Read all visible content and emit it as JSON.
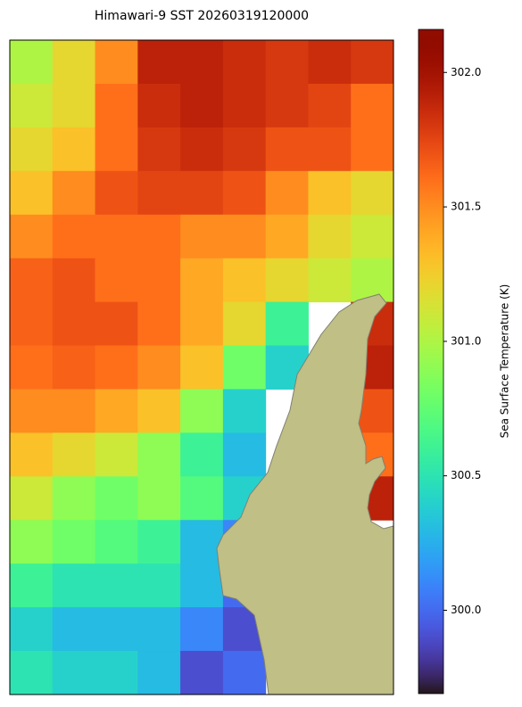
{
  "chart_data": {
    "type": "heatmap",
    "title": "Himawari-9 SST 20260319120000",
    "colorbar_label": "Sea Surface Temperature (K)",
    "colormap": "turbo",
    "land_color": "#bfbf86",
    "clim": [
      299.69,
      302.16
    ],
    "cticks": [
      {
        "value": 300,
        "label": "300.0"
      },
      {
        "value": 300.5,
        "label": "300.5"
      },
      {
        "value": 301,
        "label": "301.0"
      },
      {
        "value": 301.5,
        "label": "301.5"
      },
      {
        "value": 302,
        "label": "302.0"
      }
    ],
    "values": [
      [
        301.0,
        301.2,
        301.5,
        301.9,
        301.9,
        301.85,
        301.8,
        301.85,
        301.8
      ],
      [
        301.1,
        301.2,
        301.6,
        301.85,
        301.9,
        301.85,
        301.8,
        301.75,
        301.6
      ],
      [
        301.2,
        301.3,
        301.6,
        301.8,
        301.85,
        301.8,
        301.7,
        301.7,
        301.6
      ],
      [
        301.3,
        301.5,
        301.7,
        301.75,
        301.75,
        301.7,
        301.5,
        301.3,
        301.2
      ],
      [
        301.5,
        301.6,
        301.6,
        301.6,
        301.5,
        301.5,
        301.4,
        301.2,
        301.1
      ],
      [
        301.65,
        301.7,
        301.6,
        301.6,
        301.4,
        301.3,
        301.2,
        301.1,
        301.0
      ],
      [
        301.65,
        301.7,
        301.7,
        301.6,
        301.4,
        301.2,
        300.6,
        null,
        301.85
      ],
      [
        301.6,
        301.65,
        301.6,
        301.5,
        301.3,
        300.8,
        300.4,
        null,
        301.9
      ],
      [
        301.5,
        301.5,
        301.4,
        301.3,
        300.9,
        300.4,
        null,
        null,
        301.7
      ],
      [
        301.3,
        301.2,
        301.1,
        300.9,
        300.6,
        300.3,
        null,
        null,
        301.6
      ],
      [
        301.1,
        300.9,
        300.8,
        300.9,
        300.7,
        300.4,
        null,
        null,
        301.9
      ],
      [
        300.9,
        300.8,
        300.7,
        300.6,
        300.3,
        300.1,
        null,
        null,
        null
      ],
      [
        300.6,
        300.5,
        300.5,
        300.5,
        300.3,
        300.0,
        null,
        null,
        null
      ],
      [
        300.4,
        300.3,
        300.3,
        300.3,
        300.1,
        299.9,
        null,
        null,
        null
      ],
      [
        300.5,
        300.4,
        300.4,
        300.3,
        299.9,
        300.0,
        null,
        null,
        null
      ]
    ]
  }
}
